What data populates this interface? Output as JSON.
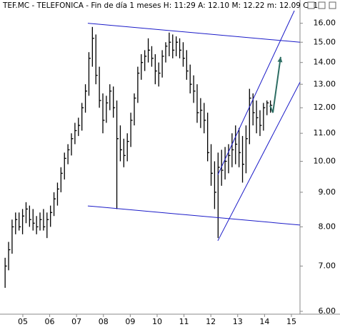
{
  "chart_data": {
    "type": "hlc",
    "title": "TEF.MC - TELEFONICA - Fin de día 1 meses  H: 11:29  A: 12.10  M: 12.22  m: 12.09  C: 1",
    "log_scale": true,
    "color": "#000000",
    "x": [
      2004.34,
      2004.47,
      2004.6,
      2004.73,
      2004.86,
      2004.99,
      2005.12,
      2005.25,
      2005.38,
      2005.51,
      2005.64,
      2005.77,
      2005.9,
      2006.03,
      2006.16,
      2006.29,
      2006.42,
      2006.55,
      2006.68,
      2006.81,
      2006.94,
      2007.07,
      2007.2,
      2007.33,
      2007.46,
      2007.59,
      2007.72,
      2007.85,
      2007.98,
      2008.11,
      2008.24,
      2008.37,
      2008.5,
      2008.63,
      2008.76,
      2008.89,
      2009.02,
      2009.15,
      2009.28,
      2009.41,
      2009.54,
      2009.67,
      2009.8,
      2009.93,
      2010.06,
      2010.19,
      2010.32,
      2010.45,
      2010.58,
      2010.71,
      2010.84,
      2010.97,
      2011.1,
      2011.23,
      2011.36,
      2011.49,
      2011.62,
      2011.75,
      2011.88,
      2012.01,
      2012.14,
      2012.27,
      2012.4,
      2012.53,
      2012.66,
      2012.79,
      2012.92,
      2013.05,
      2013.18,
      2013.31,
      2013.44,
      2013.57,
      2013.7,
      2013.83,
      2013.96,
      2014.09,
      2014.22
    ],
    "high": [
      7.2,
      7.6,
      8.2,
      8.4,
      8.4,
      8.5,
      8.7,
      8.6,
      8.5,
      8.3,
      8.4,
      8.5,
      8.4,
      8.6,
      9.0,
      9.3,
      9.8,
      10.3,
      10.6,
      11.0,
      11.4,
      11.6,
      12.2,
      13.0,
      14.5,
      15.8,
      15.4,
      13.8,
      12.6,
      12.5,
      13.0,
      12.9,
      12.3,
      11.3,
      10.8,
      11.0,
      11.8,
      12.6,
      13.8,
      14.4,
      14.6,
      15.2,
      14.8,
      14.4,
      14.0,
      14.6,
      15.0,
      15.5,
      15.4,
      15.3,
      15.2,
      15.0,
      14.6,
      13.9,
      13.4,
      13.0,
      12.4,
      12.2,
      11.8,
      10.6,
      10.0,
      10.3,
      10.4,
      10.5,
      10.6,
      11.0,
      11.3,
      11.2,
      10.9,
      11.3,
      12.8,
      12.6,
      12.3,
      11.9,
      12.2,
      12.3,
      12.3
    ],
    "low": [
      6.5,
      6.9,
      7.3,
      7.8,
      7.9,
      7.8,
      8.1,
      8.0,
      7.9,
      7.8,
      7.9,
      7.9,
      7.7,
      8.0,
      8.3,
      8.6,
      9.0,
      9.4,
      9.9,
      10.2,
      10.6,
      10.9,
      11.1,
      11.8,
      12.5,
      13.8,
      13.0,
      12.0,
      11.0,
      11.4,
      11.9,
      11.6,
      8.5,
      10.0,
      9.8,
      10.0,
      10.5,
      11.3,
      12.2,
      13.2,
      13.6,
      14.0,
      13.8,
      13.0,
      12.9,
      13.3,
      14.0,
      14.3,
      14.2,
      14.3,
      14.2,
      13.8,
      13.2,
      12.6,
      12.2,
      11.4,
      11.2,
      11.0,
      10.0,
      9.2,
      8.5,
      7.7,
      9.2,
      9.4,
      9.6,
      9.8,
      9.9,
      9.8,
      9.3,
      9.6,
      10.6,
      11.3,
      11.0,
      10.9,
      11.1,
      11.7,
      11.8
    ],
    "close": [
      7.0,
      7.4,
      8.0,
      8.2,
      8.0,
      8.3,
      8.5,
      8.2,
      8.1,
      8.0,
      8.2,
      8.0,
      8.2,
      8.4,
      8.8,
      9.1,
      9.6,
      10.1,
      10.4,
      10.8,
      11.1,
      11.3,
      12.0,
      12.7,
      14.2,
      15.2,
      13.4,
      12.3,
      11.5,
      12.2,
      12.7,
      12.0,
      10.8,
      10.4,
      10.2,
      10.7,
      11.5,
      12.4,
      13.5,
      14.0,
      14.3,
      14.6,
      14.2,
      13.6,
      13.5,
      14.3,
      14.8,
      15.0,
      14.6,
      15.0,
      14.6,
      14.2,
      13.6,
      13.0,
      12.7,
      11.8,
      11.9,
      11.5,
      10.3,
      9.6,
      9.0,
      9.8,
      9.7,
      10.0,
      10.2,
      10.4,
      10.6,
      10.3,
      9.9,
      10.8,
      12.4,
      11.8,
      11.6,
      11.3,
      12.0,
      12.2,
      12.1
    ],
    "xlim": [
      2004.15,
      2015.32
    ],
    "ylim": [
      6,
      16.7
    ],
    "xticks": [
      {
        "value": 2005,
        "label": "05"
      },
      {
        "value": 2006,
        "label": "06"
      },
      {
        "value": 2007,
        "label": "07"
      },
      {
        "value": 2008,
        "label": "08"
      },
      {
        "value": 2009,
        "label": "09"
      },
      {
        "value": 2010,
        "label": "10"
      },
      {
        "value": 2011,
        "label": "11"
      },
      {
        "value": 2012,
        "label": "12"
      },
      {
        "value": 2013,
        "label": "13"
      },
      {
        "value": 2014,
        "label": "14"
      },
      {
        "value": 2015,
        "label": "15"
      }
    ],
    "yticks": [
      {
        "value": 6,
        "label": "6.00"
      },
      {
        "value": 7,
        "label": "7.00"
      },
      {
        "value": 8,
        "label": "8.00"
      },
      {
        "value": 9,
        "label": "9.00"
      },
      {
        "value": 10,
        "label": "10.00"
      },
      {
        "value": 11,
        "label": "11.00"
      },
      {
        "value": 12,
        "label": "12.00"
      },
      {
        "value": 13,
        "label": "13.00"
      },
      {
        "value": 14,
        "label": "14.00"
      },
      {
        "value": 15,
        "label": "15.00"
      },
      {
        "value": 16,
        "label": "16.00"
      }
    ],
    "trendlines": [
      {
        "x": [
          2007.42,
          2015.32
        ],
        "y": [
          16.0,
          15.0
        ],
        "color": "#1a1ac8"
      },
      {
        "x": [
          2007.42,
          2015.32
        ],
        "y": [
          8.59,
          8.05
        ],
        "color": "#1a1ac8"
      },
      {
        "x": [
          2012.26,
          2015.11
        ],
        "y": [
          9.55,
          16.7
        ],
        "color": "#1a1ac8"
      },
      {
        "x": [
          2012.26,
          2015.32
        ],
        "y": [
          7.63,
          13.09
        ],
        "color": "#1a1ac8"
      }
    ],
    "arrow": {
      "x": [
        2014.31,
        2014.6
      ],
      "y": [
        11.8,
        14.27
      ],
      "color": "#2e6e64"
    }
  }
}
